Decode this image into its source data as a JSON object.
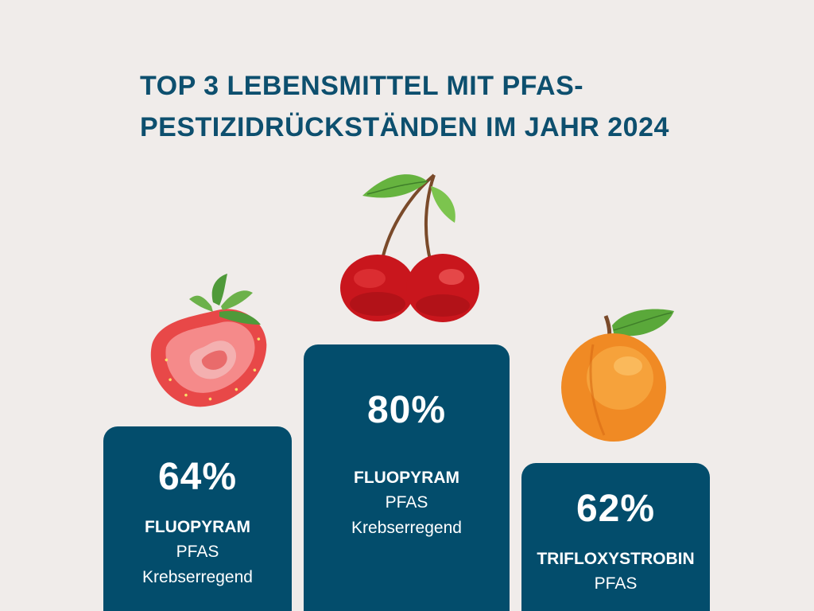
{
  "title": {
    "line1": "TOP 3 LEBENSMITTEL MIT PFAS-",
    "line2": "PESTIZIDRÜCKSTÄNDEN IM JAHR 2024"
  },
  "podium": [
    {
      "fruit_icon": "strawberry-icon",
      "percent": "64%",
      "substance": "FLUOPYRAM",
      "lines": [
        "PFAS",
        "Krebserregend"
      ]
    },
    {
      "fruit_icon": "cherry-icon",
      "percent": "80%",
      "substance": "FLUOPYRAM",
      "lines": [
        "PFAS",
        "Krebserregend"
      ]
    },
    {
      "fruit_icon": "apricot-icon",
      "percent": "62%",
      "substance": "TRIFLOXYSTROBIN",
      "lines": [
        "PFAS"
      ]
    }
  ],
  "colors": {
    "background": "#f0ecea",
    "title": "#0d4f6e",
    "podium": "#034d6c",
    "text_on_podium": "#ffffff"
  }
}
